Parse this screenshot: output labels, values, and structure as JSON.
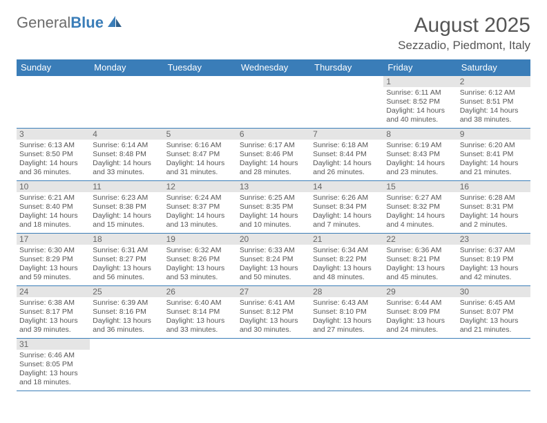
{
  "brand": {
    "part1": "General",
    "part2": "Blue"
  },
  "header": {
    "month": "August 2025",
    "location": "Sezzadio, Piedmont, Italy"
  },
  "colors": {
    "accent": "#3a7db8",
    "dayheader_bg": "#e5e5e5",
    "text": "#555555"
  },
  "weekdays": [
    "Sunday",
    "Monday",
    "Tuesday",
    "Wednesday",
    "Thursday",
    "Friday",
    "Saturday"
  ],
  "weeks": [
    [
      {
        "empty": true
      },
      {
        "empty": true
      },
      {
        "empty": true
      },
      {
        "empty": true
      },
      {
        "empty": true
      },
      {
        "day": "1",
        "sunrise": "Sunrise: 6:11 AM",
        "sunset": "Sunset: 8:52 PM",
        "daylight": "Daylight: 14 hours and 40 minutes."
      },
      {
        "day": "2",
        "sunrise": "Sunrise: 6:12 AM",
        "sunset": "Sunset: 8:51 PM",
        "daylight": "Daylight: 14 hours and 38 minutes."
      }
    ],
    [
      {
        "day": "3",
        "sunrise": "Sunrise: 6:13 AM",
        "sunset": "Sunset: 8:50 PM",
        "daylight": "Daylight: 14 hours and 36 minutes."
      },
      {
        "day": "4",
        "sunrise": "Sunrise: 6:14 AM",
        "sunset": "Sunset: 8:48 PM",
        "daylight": "Daylight: 14 hours and 33 minutes."
      },
      {
        "day": "5",
        "sunrise": "Sunrise: 6:16 AM",
        "sunset": "Sunset: 8:47 PM",
        "daylight": "Daylight: 14 hours and 31 minutes."
      },
      {
        "day": "6",
        "sunrise": "Sunrise: 6:17 AM",
        "sunset": "Sunset: 8:46 PM",
        "daylight": "Daylight: 14 hours and 28 minutes."
      },
      {
        "day": "7",
        "sunrise": "Sunrise: 6:18 AM",
        "sunset": "Sunset: 8:44 PM",
        "daylight": "Daylight: 14 hours and 26 minutes."
      },
      {
        "day": "8",
        "sunrise": "Sunrise: 6:19 AM",
        "sunset": "Sunset: 8:43 PM",
        "daylight": "Daylight: 14 hours and 23 minutes."
      },
      {
        "day": "9",
        "sunrise": "Sunrise: 6:20 AM",
        "sunset": "Sunset: 8:41 PM",
        "daylight": "Daylight: 14 hours and 21 minutes."
      }
    ],
    [
      {
        "day": "10",
        "sunrise": "Sunrise: 6:21 AM",
        "sunset": "Sunset: 8:40 PM",
        "daylight": "Daylight: 14 hours and 18 minutes."
      },
      {
        "day": "11",
        "sunrise": "Sunrise: 6:23 AM",
        "sunset": "Sunset: 8:38 PM",
        "daylight": "Daylight: 14 hours and 15 minutes."
      },
      {
        "day": "12",
        "sunrise": "Sunrise: 6:24 AM",
        "sunset": "Sunset: 8:37 PM",
        "daylight": "Daylight: 14 hours and 13 minutes."
      },
      {
        "day": "13",
        "sunrise": "Sunrise: 6:25 AM",
        "sunset": "Sunset: 8:35 PM",
        "daylight": "Daylight: 14 hours and 10 minutes."
      },
      {
        "day": "14",
        "sunrise": "Sunrise: 6:26 AM",
        "sunset": "Sunset: 8:34 PM",
        "daylight": "Daylight: 14 hours and 7 minutes."
      },
      {
        "day": "15",
        "sunrise": "Sunrise: 6:27 AM",
        "sunset": "Sunset: 8:32 PM",
        "daylight": "Daylight: 14 hours and 4 minutes."
      },
      {
        "day": "16",
        "sunrise": "Sunrise: 6:28 AM",
        "sunset": "Sunset: 8:31 PM",
        "daylight": "Daylight: 14 hours and 2 minutes."
      }
    ],
    [
      {
        "day": "17",
        "sunrise": "Sunrise: 6:30 AM",
        "sunset": "Sunset: 8:29 PM",
        "daylight": "Daylight: 13 hours and 59 minutes."
      },
      {
        "day": "18",
        "sunrise": "Sunrise: 6:31 AM",
        "sunset": "Sunset: 8:27 PM",
        "daylight": "Daylight: 13 hours and 56 minutes."
      },
      {
        "day": "19",
        "sunrise": "Sunrise: 6:32 AM",
        "sunset": "Sunset: 8:26 PM",
        "daylight": "Daylight: 13 hours and 53 minutes."
      },
      {
        "day": "20",
        "sunrise": "Sunrise: 6:33 AM",
        "sunset": "Sunset: 8:24 PM",
        "daylight": "Daylight: 13 hours and 50 minutes."
      },
      {
        "day": "21",
        "sunrise": "Sunrise: 6:34 AM",
        "sunset": "Sunset: 8:22 PM",
        "daylight": "Daylight: 13 hours and 48 minutes."
      },
      {
        "day": "22",
        "sunrise": "Sunrise: 6:36 AM",
        "sunset": "Sunset: 8:21 PM",
        "daylight": "Daylight: 13 hours and 45 minutes."
      },
      {
        "day": "23",
        "sunrise": "Sunrise: 6:37 AM",
        "sunset": "Sunset: 8:19 PM",
        "daylight": "Daylight: 13 hours and 42 minutes."
      }
    ],
    [
      {
        "day": "24",
        "sunrise": "Sunrise: 6:38 AM",
        "sunset": "Sunset: 8:17 PM",
        "daylight": "Daylight: 13 hours and 39 minutes."
      },
      {
        "day": "25",
        "sunrise": "Sunrise: 6:39 AM",
        "sunset": "Sunset: 8:16 PM",
        "daylight": "Daylight: 13 hours and 36 minutes."
      },
      {
        "day": "26",
        "sunrise": "Sunrise: 6:40 AM",
        "sunset": "Sunset: 8:14 PM",
        "daylight": "Daylight: 13 hours and 33 minutes."
      },
      {
        "day": "27",
        "sunrise": "Sunrise: 6:41 AM",
        "sunset": "Sunset: 8:12 PM",
        "daylight": "Daylight: 13 hours and 30 minutes."
      },
      {
        "day": "28",
        "sunrise": "Sunrise: 6:43 AM",
        "sunset": "Sunset: 8:10 PM",
        "daylight": "Daylight: 13 hours and 27 minutes."
      },
      {
        "day": "29",
        "sunrise": "Sunrise: 6:44 AM",
        "sunset": "Sunset: 8:09 PM",
        "daylight": "Daylight: 13 hours and 24 minutes."
      },
      {
        "day": "30",
        "sunrise": "Sunrise: 6:45 AM",
        "sunset": "Sunset: 8:07 PM",
        "daylight": "Daylight: 13 hours and 21 minutes."
      }
    ],
    [
      {
        "day": "31",
        "sunrise": "Sunrise: 6:46 AM",
        "sunset": "Sunset: 8:05 PM",
        "daylight": "Daylight: 13 hours and 18 minutes."
      },
      {
        "empty": true
      },
      {
        "empty": true
      },
      {
        "empty": true
      },
      {
        "empty": true
      },
      {
        "empty": true
      },
      {
        "empty": true
      }
    ]
  ]
}
